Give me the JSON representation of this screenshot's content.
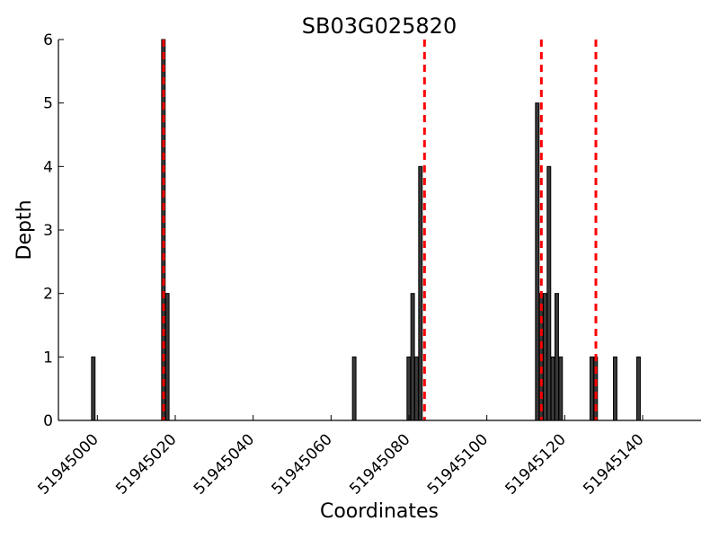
{
  "chart_data": {
    "type": "bar",
    "title": "SB03G025820",
    "xlabel": "Coordinates",
    "ylabel": "Depth",
    "xlim": [
      51944990,
      51945155
    ],
    "ylim": [
      0,
      6
    ],
    "x_ticks": [
      51945000,
      51945020,
      51945040,
      51945060,
      51945080,
      51945100,
      51945120,
      51945140
    ],
    "y_ticks": [
      0,
      1,
      2,
      3,
      4,
      5,
      6
    ],
    "grid": false,
    "bar_color": "#3a3a3a",
    "bar_edge_color": "#000000",
    "marker_color": "#ff0000",
    "bars": [
      {
        "x": 51944999,
        "y": 1
      },
      {
        "x": 51945017,
        "y": 6
      },
      {
        "x": 51945018,
        "y": 2
      },
      {
        "x": 51945066,
        "y": 1
      },
      {
        "x": 51945080,
        "y": 1
      },
      {
        "x": 51945081,
        "y": 2
      },
      {
        "x": 51945082,
        "y": 1
      },
      {
        "x": 51945083,
        "y": 4
      },
      {
        "x": 51945113,
        "y": 5
      },
      {
        "x": 51945114,
        "y": 2
      },
      {
        "x": 51945115,
        "y": 2
      },
      {
        "x": 51945116,
        "y": 4
      },
      {
        "x": 51945117,
        "y": 1
      },
      {
        "x": 51945118,
        "y": 2
      },
      {
        "x": 51945119,
        "y": 1
      },
      {
        "x": 51945127,
        "y": 1
      },
      {
        "x": 51945128,
        "y": 1
      },
      {
        "x": 51945133,
        "y": 1
      },
      {
        "x": 51945139,
        "y": 1
      }
    ],
    "dashed_markers": [
      51945017,
      51945084,
      51945114,
      51945128
    ]
  }
}
